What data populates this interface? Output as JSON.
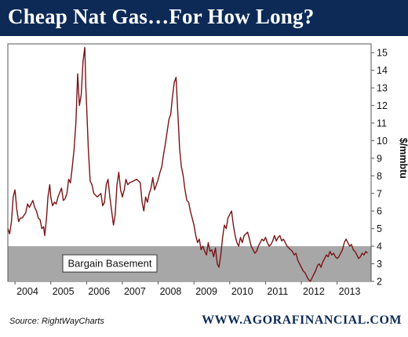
{
  "title": "Cheap Nat Gas…For How Long?",
  "source": "Source: RightWayCharts",
  "website": "WWW.AGORAFINANCIAL.COM",
  "colors": {
    "title_bar": "#0d2a57",
    "line": "#7a1416",
    "basement_band": "#a7a7a7"
  },
  "chart_data": {
    "type": "line",
    "ylabel": "$/mmbtu",
    "xlabel": "",
    "ylim": [
      2,
      15.5
    ],
    "xlim": [
      2003.8,
      2013.95
    ],
    "y_ticks": [
      2,
      3,
      4,
      5,
      6,
      7,
      8,
      9,
      10,
      11,
      12,
      13,
      14,
      15
    ],
    "x_ticks": [
      {
        "label": "2004",
        "x": 2004
      },
      {
        "label": "2005",
        "x": 2005
      },
      {
        "label": "2006",
        "x": 2006
      },
      {
        "label": "2007",
        "x": 2007
      },
      {
        "label": "2008",
        "x": 2008
      },
      {
        "label": "2009",
        "x": 2009
      },
      {
        "label": "2010",
        "x": 2010
      },
      {
        "label": "2011",
        "x": 2011
      },
      {
        "label": "2012",
        "x": 2012
      },
      {
        "label": "2013",
        "x": 2013
      }
    ],
    "y_axis_side": "right",
    "grid": false,
    "band": {
      "label": "Bargain Basement",
      "y_from": 2,
      "y_to": 4
    },
    "series": [
      {
        "name": "",
        "points": [
          [
            2003.8,
            5.0
          ],
          [
            2003.85,
            4.7
          ],
          [
            2003.9,
            5.4
          ],
          [
            2003.95,
            6.8
          ],
          [
            2004.0,
            7.2
          ],
          [
            2004.05,
            6.1
          ],
          [
            2004.1,
            5.4
          ],
          [
            2004.15,
            5.6
          ],
          [
            2004.2,
            5.6
          ],
          [
            2004.3,
            5.9
          ],
          [
            2004.35,
            6.4
          ],
          [
            2004.4,
            6.2
          ],
          [
            2004.5,
            6.6
          ],
          [
            2004.55,
            6.2
          ],
          [
            2004.6,
            6.0
          ],
          [
            2004.65,
            5.6
          ],
          [
            2004.7,
            5.5
          ],
          [
            2004.75,
            5.0
          ],
          [
            2004.8,
            5.1
          ],
          [
            2004.83,
            4.6
          ],
          [
            2004.88,
            5.6
          ],
          [
            2004.92,
            6.8
          ],
          [
            2004.97,
            7.5
          ],
          [
            2005.0,
            6.8
          ],
          [
            2005.05,
            6.3
          ],
          [
            2005.1,
            6.5
          ],
          [
            2005.15,
            6.4
          ],
          [
            2005.2,
            6.8
          ],
          [
            2005.3,
            7.3
          ],
          [
            2005.35,
            6.6
          ],
          [
            2005.4,
            6.7
          ],
          [
            2005.45,
            7.0
          ],
          [
            2005.5,
            7.8
          ],
          [
            2005.55,
            7.6
          ],
          [
            2005.6,
            8.5
          ],
          [
            2005.65,
            9.5
          ],
          [
            2005.7,
            11.0
          ],
          [
            2005.75,
            13.8
          ],
          [
            2005.8,
            12.0
          ],
          [
            2005.85,
            12.6
          ],
          [
            2005.9,
            14.5
          ],
          [
            2005.95,
            15.3
          ],
          [
            2005.98,
            13.0
          ],
          [
            2006.0,
            12.0
          ],
          [
            2006.05,
            9.5
          ],
          [
            2006.1,
            7.7
          ],
          [
            2006.15,
            7.5
          ],
          [
            2006.2,
            7.0
          ],
          [
            2006.3,
            6.8
          ],
          [
            2006.4,
            7.0
          ],
          [
            2006.45,
            6.3
          ],
          [
            2006.5,
            6.5
          ],
          [
            2006.55,
            7.5
          ],
          [
            2006.6,
            7.8
          ],
          [
            2006.65,
            6.8
          ],
          [
            2006.7,
            6.0
          ],
          [
            2006.75,
            5.2
          ],
          [
            2006.8,
            5.8
          ],
          [
            2006.85,
            7.5
          ],
          [
            2006.9,
            8.2
          ],
          [
            2006.95,
            7.2
          ],
          [
            2007.0,
            6.8
          ],
          [
            2007.05,
            7.2
          ],
          [
            2007.1,
            7.8
          ],
          [
            2007.15,
            7.5
          ],
          [
            2007.2,
            7.6
          ],
          [
            2007.3,
            7.7
          ],
          [
            2007.4,
            7.8
          ],
          [
            2007.5,
            7.6
          ],
          [
            2007.55,
            6.5
          ],
          [
            2007.6,
            6.0
          ],
          [
            2007.65,
            6.8
          ],
          [
            2007.7,
            6.5
          ],
          [
            2007.75,
            7.0
          ],
          [
            2007.8,
            7.3
          ],
          [
            2007.85,
            7.9
          ],
          [
            2007.9,
            7.2
          ],
          [
            2007.95,
            7.5
          ],
          [
            2008.0,
            7.8
          ],
          [
            2008.05,
            8.2
          ],
          [
            2008.1,
            8.5
          ],
          [
            2008.15,
            9.2
          ],
          [
            2008.2,
            9.8
          ],
          [
            2008.25,
            10.5
          ],
          [
            2008.3,
            11.2
          ],
          [
            2008.35,
            11.5
          ],
          [
            2008.4,
            12.5
          ],
          [
            2008.45,
            13.3
          ],
          [
            2008.5,
            13.6
          ],
          [
            2008.55,
            11.5
          ],
          [
            2008.6,
            9.5
          ],
          [
            2008.65,
            8.5
          ],
          [
            2008.7,
            8.0
          ],
          [
            2008.75,
            7.2
          ],
          [
            2008.8,
            6.6
          ],
          [
            2008.85,
            6.5
          ],
          [
            2008.9,
            6.0
          ],
          [
            2008.95,
            5.6
          ],
          [
            2009.0,
            5.2
          ],
          [
            2009.05,
            4.6
          ],
          [
            2009.1,
            4.2
          ],
          [
            2009.15,
            4.4
          ],
          [
            2009.2,
            3.8
          ],
          [
            2009.25,
            4.0
          ],
          [
            2009.3,
            3.7
          ],
          [
            2009.35,
            3.5
          ],
          [
            2009.4,
            4.2
          ],
          [
            2009.45,
            3.7
          ],
          [
            2009.5,
            3.8
          ],
          [
            2009.55,
            3.4
          ],
          [
            2009.6,
            3.9
          ],
          [
            2009.65,
            3.0
          ],
          [
            2009.7,
            2.8
          ],
          [
            2009.75,
            3.5
          ],
          [
            2009.8,
            4.5
          ],
          [
            2009.85,
            5.2
          ],
          [
            2009.9,
            5.0
          ],
          [
            2009.95,
            5.6
          ],
          [
            2010.0,
            5.8
          ],
          [
            2010.05,
            6.0
          ],
          [
            2010.1,
            5.2
          ],
          [
            2010.15,
            4.6
          ],
          [
            2010.2,
            4.2
          ],
          [
            2010.25,
            4.0
          ],
          [
            2010.3,
            4.5
          ],
          [
            2010.35,
            4.2
          ],
          [
            2010.4,
            4.6
          ],
          [
            2010.5,
            4.8
          ],
          [
            2010.55,
            4.4
          ],
          [
            2010.6,
            4.0
          ],
          [
            2010.65,
            3.8
          ],
          [
            2010.7,
            3.6
          ],
          [
            2010.75,
            3.7
          ],
          [
            2010.8,
            4.0
          ],
          [
            2010.85,
            4.2
          ],
          [
            2010.9,
            4.4
          ],
          [
            2010.95,
            4.3
          ],
          [
            2011.0,
            4.5
          ],
          [
            2011.05,
            4.2
          ],
          [
            2011.1,
            4.0
          ],
          [
            2011.15,
            4.1
          ],
          [
            2011.2,
            4.3
          ],
          [
            2011.25,
            4.6
          ],
          [
            2011.3,
            4.3
          ],
          [
            2011.35,
            4.5
          ],
          [
            2011.4,
            4.6
          ],
          [
            2011.45,
            4.3
          ],
          [
            2011.5,
            4.4
          ],
          [
            2011.55,
            4.2
          ],
          [
            2011.6,
            4.0
          ],
          [
            2011.65,
            3.9
          ],
          [
            2011.7,
            3.8
          ],
          [
            2011.75,
            3.7
          ],
          [
            2011.8,
            3.5
          ],
          [
            2011.85,
            3.6
          ],
          [
            2011.9,
            3.2
          ],
          [
            2011.95,
            3.0
          ],
          [
            2012.0,
            2.8
          ],
          [
            2012.05,
            2.6
          ],
          [
            2012.1,
            2.5
          ],
          [
            2012.15,
            2.3
          ],
          [
            2012.2,
            2.1
          ],
          [
            2012.25,
            2.0
          ],
          [
            2012.3,
            2.2
          ],
          [
            2012.35,
            2.4
          ],
          [
            2012.4,
            2.6
          ],
          [
            2012.45,
            2.9
          ],
          [
            2012.5,
            3.0
          ],
          [
            2012.55,
            2.8
          ],
          [
            2012.6,
            3.1
          ],
          [
            2012.65,
            3.3
          ],
          [
            2012.7,
            3.5
          ],
          [
            2012.75,
            3.4
          ],
          [
            2012.8,
            3.7
          ],
          [
            2012.85,
            3.5
          ],
          [
            2012.9,
            3.6
          ],
          [
            2012.95,
            3.4
          ],
          [
            2013.0,
            3.3
          ],
          [
            2013.05,
            3.4
          ],
          [
            2013.1,
            3.6
          ],
          [
            2013.15,
            3.8
          ],
          [
            2013.2,
            4.2
          ],
          [
            2013.25,
            4.4
          ],
          [
            2013.3,
            4.2
          ],
          [
            2013.35,
            4.0
          ],
          [
            2013.4,
            4.1
          ],
          [
            2013.45,
            3.8
          ],
          [
            2013.5,
            3.7
          ],
          [
            2013.55,
            3.5
          ],
          [
            2013.6,
            3.3
          ],
          [
            2013.65,
            3.4
          ],
          [
            2013.7,
            3.6
          ],
          [
            2013.75,
            3.5
          ],
          [
            2013.8,
            3.7
          ],
          [
            2013.85,
            3.6
          ]
        ]
      }
    ]
  }
}
